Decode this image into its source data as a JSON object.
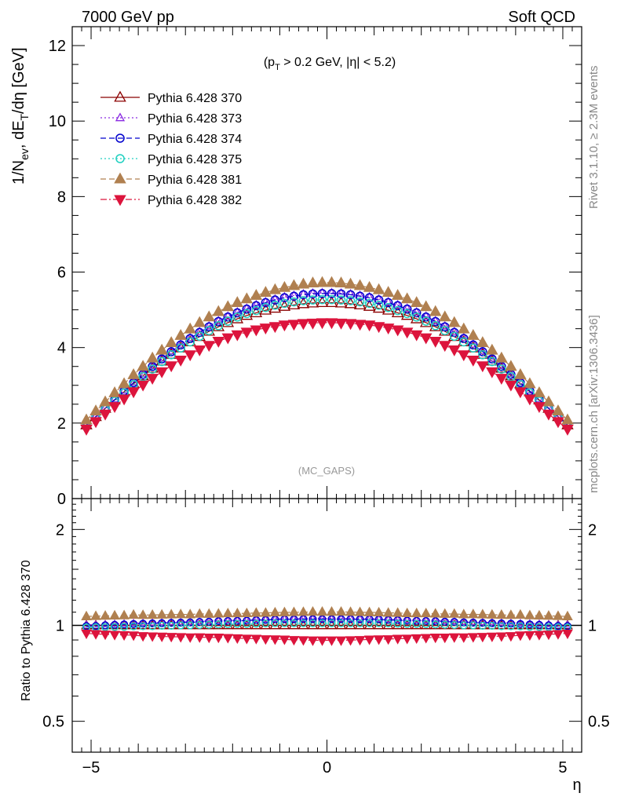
{
  "header": {
    "left": "7000 GeV pp",
    "right": "Soft QCD"
  },
  "side_labels": {
    "rivet": "Rivet 3.1.10, ≥ 2.3M events",
    "mcplots": "mcplots.cern.ch [arXiv:1306.3436]"
  },
  "watermark": "(MC_GAPS)",
  "cut_label": {
    "open": "(p",
    "sub": "T",
    "rest": " > 0.2 GeV, |η| < 5.2)"
  },
  "axes": {
    "y_main": {
      "prefix": "1/N",
      "sub1": "ev",
      "mid": ", dE",
      "sub2": "T",
      "suffix": "/dη [GeV]"
    },
    "y_ratio": "Ratio to Pythia 6.428 370",
    "x": "η"
  },
  "chart_data": {
    "type": "scatter",
    "x_range": [
      -5.4,
      5.4
    ],
    "main": {
      "ylim": [
        0,
        12.5
      ],
      "yticks": [
        0,
        2,
        4,
        6,
        8,
        10,
        12
      ],
      "ytick_labels": [
        "0",
        "2",
        "4",
        "6",
        "8",
        "10",
        "12"
      ]
    },
    "ratio": {
      "ylim": [
        0.4,
        2.5
      ],
      "log_scale": true,
      "yticks": [
        0.5,
        1,
        2
      ],
      "ytick_labels": [
        "0.5",
        "1",
        "2"
      ],
      "reference": "Pythia 6.428 370"
    },
    "xticks": [
      -5,
      0,
      5
    ],
    "xtick_labels": [
      "−5",
      "0",
      "5"
    ],
    "x": [
      -5.1,
      -4.9,
      -4.7,
      -4.5,
      -4.3,
      -4.1,
      -3.9,
      -3.7,
      -3.5,
      -3.3,
      -3.1,
      -2.9,
      -2.7,
      -2.5,
      -2.3,
      -2.1,
      -1.9,
      -1.7,
      -1.5,
      -1.3,
      -1.1,
      -0.9,
      -0.7,
      -0.5,
      -0.3,
      -0.1,
      0.1,
      0.3,
      0.5,
      0.7,
      0.9,
      1.1,
      1.3,
      1.5,
      1.7,
      1.9,
      2.1,
      2.3,
      2.5,
      2.7,
      2.9,
      3.1,
      3.3,
      3.5,
      3.7,
      3.9,
      4.1,
      4.3,
      4.5,
      4.7,
      4.9,
      5.1
    ],
    "series": [
      {
        "name": "Pythia 6.428 370",
        "color": "#8b0000",
        "marker": "triangle-up-open",
        "line": "solid",
        "values": [
          1.95,
          2.17,
          2.39,
          2.61,
          2.83,
          3.04,
          3.25,
          3.45,
          3.64,
          3.82,
          3.99,
          4.15,
          4.29,
          4.43,
          4.55,
          4.66,
          4.76,
          4.85,
          4.92,
          4.99,
          5.04,
          5.09,
          5.13,
          5.16,
          5.18,
          5.19,
          5.19,
          5.18,
          5.16,
          5.13,
          5.09,
          5.04,
          4.99,
          4.92,
          4.85,
          4.76,
          4.66,
          4.55,
          4.43,
          4.29,
          4.15,
          3.99,
          3.82,
          3.64,
          3.45,
          3.25,
          3.04,
          2.83,
          2.61,
          2.39,
          2.17,
          1.95
        ]
      },
      {
        "name": "Pythia 6.428 373",
        "color": "#8a2be2",
        "marker": "triangle-up-open-small",
        "line": "dotted",
        "values": [
          1.96,
          2.18,
          2.41,
          2.64,
          2.87,
          3.09,
          3.31,
          3.52,
          3.72,
          3.91,
          4.09,
          4.26,
          4.42,
          4.57,
          4.71,
          4.83,
          4.94,
          5.04,
          5.13,
          5.21,
          5.28,
          5.34,
          5.38,
          5.42,
          5.44,
          5.45,
          5.45,
          5.44,
          5.42,
          5.38,
          5.34,
          5.28,
          5.21,
          5.13,
          5.04,
          4.94,
          4.83,
          4.71,
          4.57,
          4.42,
          4.26,
          4.09,
          3.91,
          3.72,
          3.52,
          3.31,
          3.09,
          2.87,
          2.64,
          2.41,
          2.18,
          1.96
        ]
      },
      {
        "name": "Pythia 6.428 374",
        "color": "#0000cd",
        "marker": "circle-open",
        "line": "dashed",
        "values": [
          1.94,
          2.16,
          2.39,
          2.62,
          2.85,
          3.07,
          3.29,
          3.5,
          3.7,
          3.89,
          4.07,
          4.24,
          4.4,
          4.55,
          4.69,
          4.81,
          4.92,
          5.02,
          5.11,
          5.19,
          5.26,
          5.32,
          5.36,
          5.4,
          5.42,
          5.43,
          5.43,
          5.42,
          5.4,
          5.36,
          5.32,
          5.26,
          5.19,
          5.11,
          5.02,
          4.92,
          4.81,
          4.69,
          4.55,
          4.4,
          4.24,
          4.07,
          3.89,
          3.7,
          3.5,
          3.29,
          3.07,
          2.85,
          2.62,
          2.39,
          2.16,
          1.94
        ]
      },
      {
        "name": "Pythia 6.428 375",
        "color": "#20d0c0",
        "marker": "circle-open",
        "line": "dotted",
        "values": [
          1.92,
          2.14,
          2.36,
          2.58,
          2.8,
          3.02,
          3.23,
          3.43,
          3.63,
          3.81,
          3.99,
          4.15,
          4.3,
          4.45,
          4.58,
          4.7,
          4.81,
          4.9,
          4.98,
          5.06,
          5.12,
          5.17,
          5.21,
          5.24,
          5.26,
          5.27,
          5.27,
          5.26,
          5.24,
          5.21,
          5.17,
          5.12,
          5.06,
          4.98,
          4.9,
          4.81,
          4.7,
          4.58,
          4.45,
          4.3,
          4.15,
          3.99,
          3.81,
          3.63,
          3.43,
          3.23,
          3.02,
          2.8,
          2.58,
          2.36,
          2.14,
          1.92
        ]
      },
      {
        "name": "Pythia 6.428 381",
        "color": "#b08050",
        "marker": "triangle-up-filled",
        "line": "dashed",
        "values": [
          2.08,
          2.32,
          2.56,
          2.8,
          3.04,
          3.28,
          3.5,
          3.72,
          3.93,
          4.13,
          4.32,
          4.49,
          4.66,
          4.81,
          4.95,
          5.08,
          5.19,
          5.29,
          5.38,
          5.46,
          5.53,
          5.59,
          5.64,
          5.68,
          5.71,
          5.72,
          5.72,
          5.71,
          5.68,
          5.64,
          5.59,
          5.53,
          5.46,
          5.38,
          5.29,
          5.19,
          5.08,
          4.95,
          4.81,
          4.66,
          4.49,
          4.32,
          4.13,
          3.93,
          3.72,
          3.5,
          3.28,
          3.04,
          2.8,
          2.56,
          2.32,
          2.08
        ]
      },
      {
        "name": "Pythia 6.428 382",
        "color": "#dc143c",
        "marker": "triangle-down-filled",
        "line": "dashdot",
        "values": [
          1.84,
          2.04,
          2.24,
          2.44,
          2.64,
          2.83,
          3.01,
          3.19,
          3.36,
          3.52,
          3.67,
          3.81,
          3.94,
          4.06,
          4.17,
          4.26,
          4.34,
          4.41,
          4.47,
          4.52,
          4.56,
          4.6,
          4.62,
          4.64,
          4.65,
          4.66,
          4.66,
          4.65,
          4.64,
          4.62,
          4.6,
          4.56,
          4.52,
          4.47,
          4.41,
          4.34,
          4.26,
          4.17,
          4.06,
          3.94,
          3.81,
          3.67,
          3.52,
          3.36,
          3.19,
          3.01,
          2.83,
          2.64,
          2.44,
          2.24,
          2.04,
          1.84
        ]
      }
    ]
  }
}
